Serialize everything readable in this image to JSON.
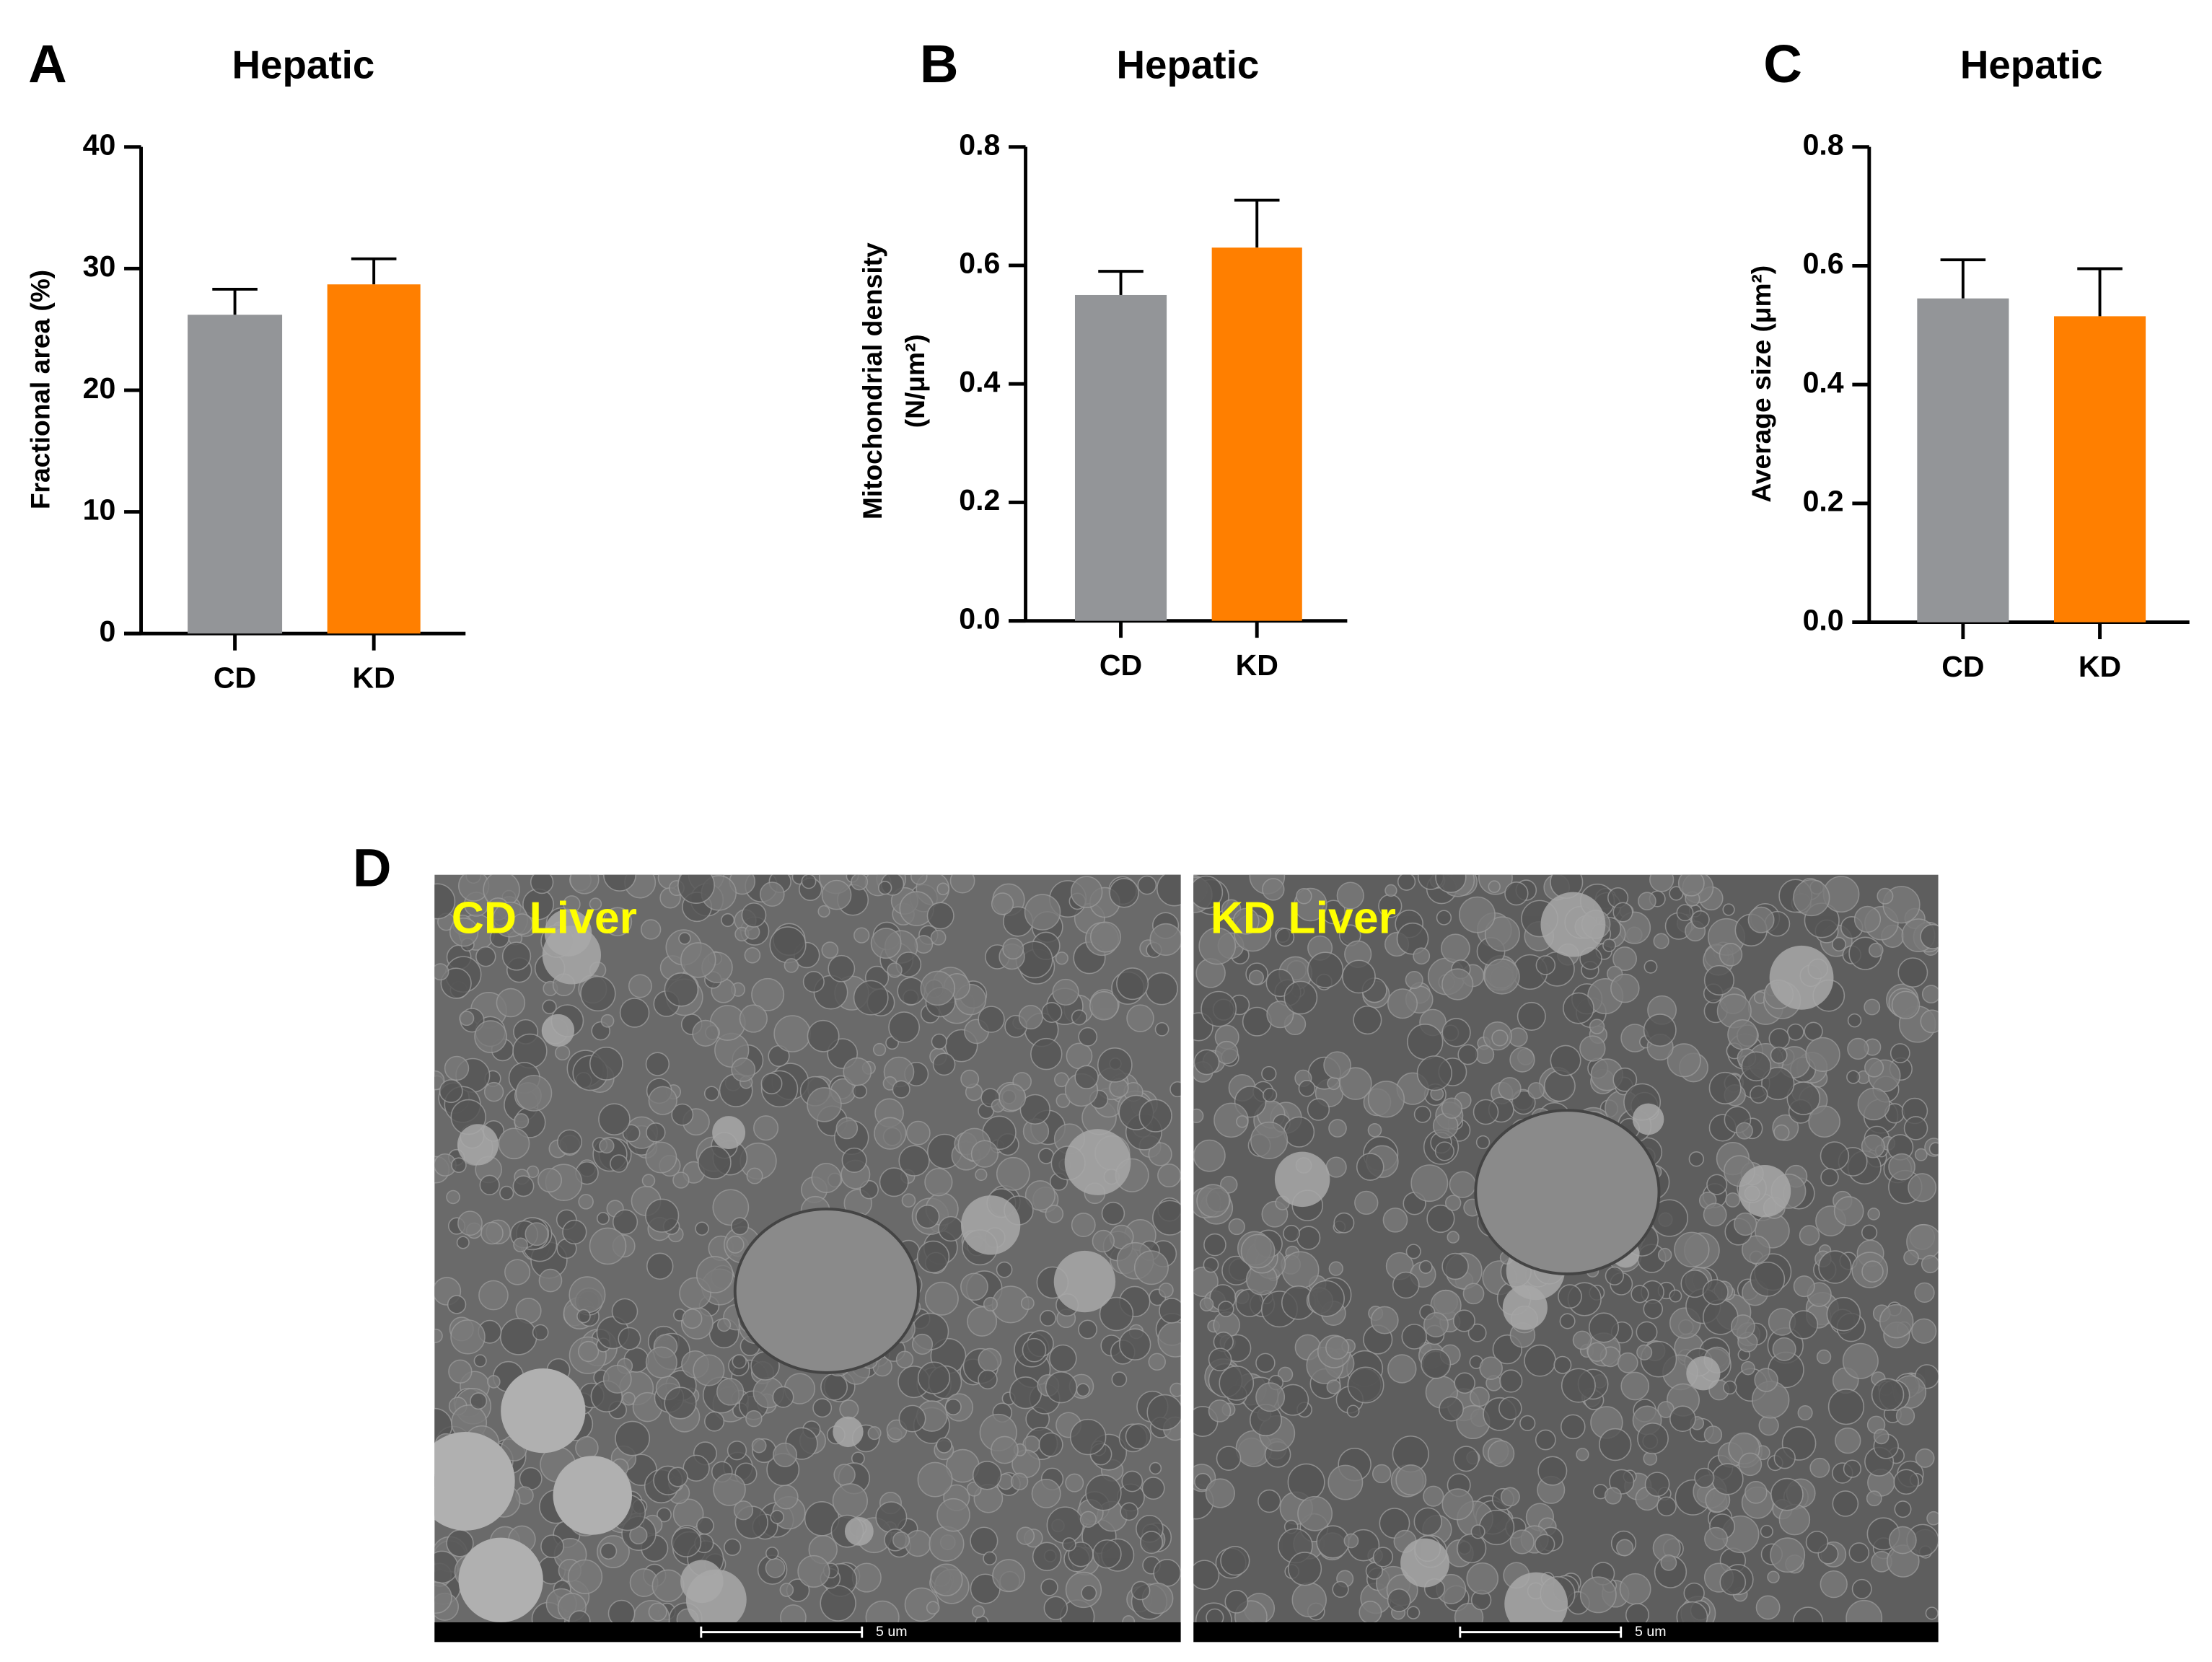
{
  "chart_data": [
    {
      "type": "bar",
      "panel_label": "A",
      "title": "Hepatic",
      "ylabel": [
        "Fractional area (%)"
      ],
      "categories": [
        "CD",
        "KD"
      ],
      "values": [
        26.2,
        28.7
      ],
      "errors": [
        2.1,
        2.1
      ],
      "colors": [
        "#939598",
        "#ff7f00"
      ],
      "ylim": [
        0,
        40
      ],
      "yticks": [
        0,
        10,
        20,
        30,
        40
      ]
    },
    {
      "type": "bar",
      "panel_label": "B",
      "title": "Hepatic",
      "ylabel": [
        "Mitochondrial density",
        "(N/μm²)"
      ],
      "categories": [
        "CD",
        "KD"
      ],
      "values": [
        0.55,
        0.63
      ],
      "errors": [
        0.04,
        0.08
      ],
      "colors": [
        "#939598",
        "#ff7f00"
      ],
      "ylim": [
        0,
        0.8
      ],
      "yticks": [
        {
          "value": 0,
          "label": "0.0"
        },
        0.2,
        0.4,
        0.6,
        0.8
      ]
    },
    {
      "type": "bar",
      "panel_label": "C",
      "title": "Hepatic",
      "ylabel": [
        "Average size (μm²)"
      ],
      "categories": [
        "CD",
        "KD"
      ],
      "values": [
        0.545,
        0.515
      ],
      "errors": [
        0.065,
        0.08
      ],
      "colors": [
        "#939598",
        "#ff7f00"
      ],
      "ylim": [
        0,
        0.8
      ],
      "yticks": [
        {
          "value": 0,
          "label": "0.0"
        },
        0.2,
        0.4,
        0.6,
        0.8
      ]
    }
  ],
  "panel_d": {
    "label": "D",
    "images": [
      {
        "title": "CD Liver",
        "scale_bar": "5 um"
      },
      {
        "title": "KD Liver",
        "scale_bar": "5 um"
      }
    ]
  }
}
